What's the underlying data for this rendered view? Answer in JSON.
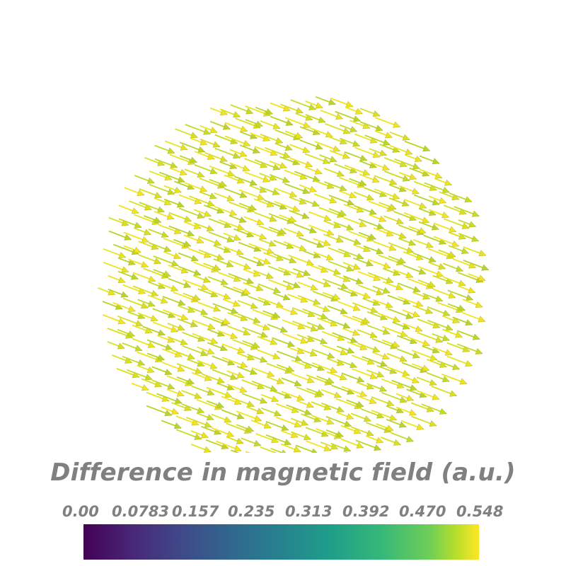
{
  "colorbar": {
    "title": "Difference in magnetic field (a.u.)",
    "ticks": [
      "0.00",
      "0.0783",
      "0.157",
      "0.235",
      "0.313",
      "0.392",
      "0.470",
      "0.548"
    ],
    "range": [
      0.0,
      0.548
    ],
    "colormap": "viridis",
    "colors": {
      "low": "#440154",
      "mid": "#21918c",
      "high": "#fde725"
    }
  },
  "field_plot": {
    "glyph_type": "arrow",
    "field_direction": "diagonal down-right",
    "region_shape": "sphere",
    "glyph_colors": [
      "#f2e41e",
      "#d9e021",
      "#c4dc27",
      "#e8e51f",
      "#b9d52a"
    ]
  }
}
